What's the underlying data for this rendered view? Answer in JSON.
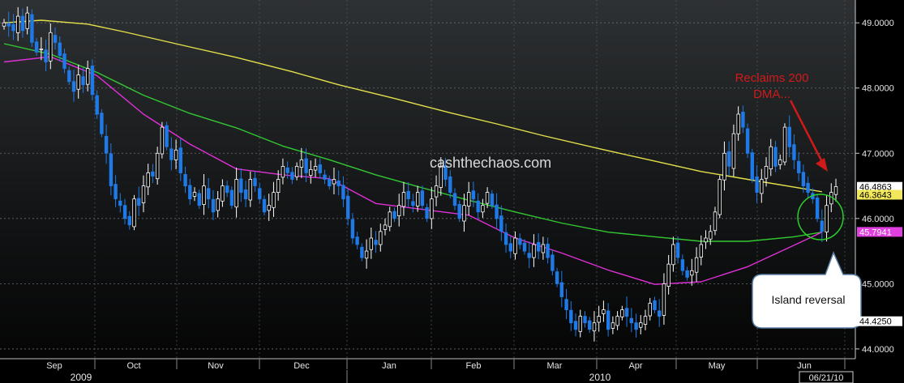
{
  "chart_data": {
    "type": "candlestick",
    "title": "",
    "ylim": [
      43.85,
      49.35
    ],
    "y_ticks": [
      {
        "value": 44.0,
        "label": "44.0000"
      },
      {
        "value": 45.0,
        "label": "45.0000"
      },
      {
        "value": 46.0,
        "label": "46.0000"
      },
      {
        "value": 47.0,
        "label": "47.0000"
      },
      {
        "value": 48.0,
        "label": "48.0000"
      },
      {
        "value": 49.0,
        "label": "49.0000"
      }
    ],
    "months": [
      "Sep",
      "Oct",
      "Nov",
      "Dec",
      "Jan",
      "Feb",
      "Mar",
      "Apr",
      "May",
      "Jun"
    ],
    "years": [
      "2009",
      "2010"
    ],
    "date_label": "06/21/10",
    "last_values": [
      {
        "label": "46.4863",
        "value": 46.4863,
        "bg": "#ffffff",
        "fg": "#000000"
      },
      {
        "label": "46.3643",
        "value": 46.3643,
        "bg": "#f2e85a",
        "fg": "#000000"
      },
      {
        "label": "45.7941",
        "value": 45.7941,
        "bg": "#e040e0",
        "fg": "#ffffff"
      },
      {
        "label": "44.4250",
        "value": 44.425,
        "bg": "#ffffff",
        "fg": "#000000"
      }
    ],
    "colors": {
      "up": "#ffffff",
      "down": "#1f7ae8",
      "ma200": "#e4df4a",
      "ma100": "#32c832",
      "ma50": "#e030d8",
      "annotation": "#d01a1a"
    },
    "watermark": "cashthechaos.com",
    "annotations": {
      "reclaim": [
        "Reclaims 200",
        "DMA..."
      ],
      "island": "Island reversal"
    },
    "ma200": [
      [
        0,
        49.0
      ],
      [
        8,
        49.04
      ],
      [
        18,
        48.98
      ],
      [
        26,
        48.86
      ],
      [
        40,
        48.63
      ],
      [
        50,
        48.47
      ],
      [
        62,
        48.25
      ],
      [
        72,
        48.05
      ],
      [
        84,
        47.84
      ],
      [
        96,
        47.62
      ],
      [
        106,
        47.45
      ],
      [
        116,
        47.27
      ],
      [
        128,
        47.07
      ],
      [
        140,
        46.88
      ],
      [
        150,
        46.72
      ],
      [
        160,
        46.6
      ],
      [
        176,
        46.41
      ]
    ],
    "ma100": [
      [
        0,
        48.68
      ],
      [
        10,
        48.52
      ],
      [
        20,
        48.24
      ],
      [
        30,
        47.89
      ],
      [
        40,
        47.61
      ],
      [
        50,
        47.39
      ],
      [
        60,
        47.11
      ],
      [
        70,
        46.9
      ],
      [
        80,
        46.67
      ],
      [
        90,
        46.47
      ],
      [
        100,
        46.28
      ],
      [
        110,
        46.1
      ],
      [
        120,
        45.93
      ],
      [
        130,
        45.79
      ],
      [
        140,
        45.72
      ],
      [
        150,
        45.65
      ],
      [
        160,
        45.65
      ],
      [
        170,
        45.72
      ],
      [
        176,
        45.79
      ]
    ],
    "ma50": [
      [
        0,
        48.4
      ],
      [
        10,
        48.48
      ],
      [
        20,
        48.19
      ],
      [
        30,
        47.6
      ],
      [
        40,
        47.14
      ],
      [
        50,
        46.76
      ],
      [
        60,
        46.67
      ],
      [
        70,
        46.61
      ],
      [
        80,
        46.23
      ],
      [
        90,
        46.14
      ],
      [
        100,
        46.05
      ],
      [
        110,
        45.7
      ],
      [
        120,
        45.47
      ],
      [
        130,
        45.21
      ],
      [
        140,
        44.99
      ],
      [
        150,
        45.03
      ],
      [
        160,
        45.26
      ],
      [
        170,
        45.59
      ],
      [
        176,
        45.79
      ]
    ],
    "closes": [
      49.0,
      48.95,
      48.88,
      49.1,
      48.88,
      49.15,
      48.7,
      48.55,
      48.6,
      48.4,
      48.85,
      48.7,
      48.5,
      48.3,
      48.1,
      47.95,
      48.2,
      48.05,
      48.3,
      47.9,
      47.6,
      47.3,
      47.0,
      46.5,
      46.3,
      46.2,
      46.0,
      45.9,
      46.3,
      46.2,
      46.5,
      46.7,
      46.65,
      47.0,
      47.4,
      47.1,
      46.9,
      47.05,
      46.7,
      46.5,
      46.3,
      46.4,
      46.2,
      46.5,
      46.3,
      46.1,
      46.3,
      46.5,
      46.4,
      46.2,
      46.6,
      46.4,
      46.3,
      46.6,
      46.5,
      46.3,
      46.1,
      46.2,
      46.4,
      46.6,
      46.8,
      46.7,
      46.6,
      46.8,
      46.9,
      46.7,
      46.75,
      46.8,
      46.7,
      46.6,
      46.5,
      46.6,
      46.5,
      46.3,
      46.0,
      45.7,
      45.6,
      45.4,
      45.5,
      45.7,
      45.6,
      45.8,
      45.9,
      46.1,
      46.0,
      46.2,
      46.4,
      46.3,
      46.2,
      46.4,
      46.2,
      46.0,
      46.3,
      46.5,
      46.8,
      46.6,
      46.4,
      46.2,
      46.0,
      46.2,
      46.4,
      46.3,
      46.1,
      46.2,
      46.4,
      46.2,
      46.0,
      45.8,
      45.6,
      45.5,
      45.7,
      45.6,
      45.5,
      45.4,
      45.6,
      45.5,
      45.6,
      45.4,
      45.2,
      45.0,
      44.8,
      44.6,
      44.4,
      44.3,
      44.5,
      44.4,
      44.3,
      44.4,
      44.5,
      44.6,
      44.3,
      44.4,
      44.5,
      44.6,
      44.5,
      44.4,
      44.3,
      44.4,
      44.5,
      44.7,
      44.6,
      44.5,
      45.0,
      45.3,
      45.6,
      45.4,
      45.2,
      45.1,
      45.2,
      45.4,
      45.6,
      45.7,
      45.8,
      46.1,
      46.6,
      47.0,
      46.8,
      47.3,
      47.6,
      47.4,
      47.0,
      46.6,
      46.4,
      46.6,
      46.8,
      47.1,
      46.8,
      46.9,
      47.4,
      47.1,
      46.9,
      46.7,
      46.5,
      46.4,
      46.3,
      46.0,
      45.8,
      46.2,
      46.4,
      46.49
    ]
  }
}
